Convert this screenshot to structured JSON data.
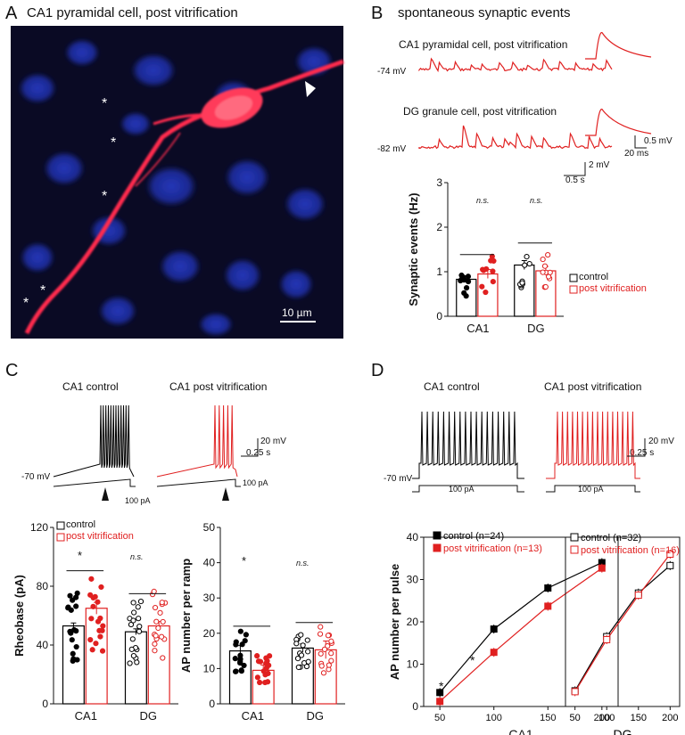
{
  "panelA": {
    "letter": "A",
    "title": "CA1 pyramidal cell, post vitrification",
    "scale_bar": "10 µm",
    "asterisk": "*",
    "colors": {
      "background": "#0a0a24",
      "nuclei": "#1e2e9a",
      "cell": "#ff2a4e"
    }
  },
  "panelB": {
    "letter": "B",
    "title": "spontaneous synaptic events",
    "trace1_title": "CA1 pyramidal cell, post vitrification",
    "trace1_vm": "-74 mV",
    "trace2_title": "DG granule cell, post vitrification",
    "trace2_vm": "-82 mV",
    "inset_scale_v": "0.5 mV",
    "inset_scale_t": "20 ms",
    "main_scale_v": "2 mV",
    "main_scale_t": "0.5 s",
    "legend_control": "control",
    "legend_post": "post vitrification",
    "sig1": "n.s.",
    "sig2": "n.s."
  },
  "panelC": {
    "letter": "C",
    "trace1_title": "CA1 control",
    "trace2_title": "CA1 post vitrification",
    "vm": "-70 mV",
    "scale_v": "20 mV",
    "scale_t": "0.25 s",
    "ramp1": "100 pA",
    "ramp2": "100 pA",
    "legend_control": "control",
    "legend_post": "post vitrification",
    "sig_ca1_1": "*",
    "sig_dg_1": "n.s.",
    "sig_ca1_2": "*",
    "sig_dg_2": "n.s."
  },
  "panelD": {
    "letter": "D",
    "trace1_title": "CA1 control",
    "trace2_title": "CA1 post vitrification",
    "vm": "-70 mV",
    "scale_v": "20 mV",
    "scale_t": "0.25 s",
    "step1": "100 pA",
    "step2": "100 pA",
    "sig1": "*",
    "sig2": "*"
  },
  "colors": {
    "control": "#000000",
    "post": "#e02020"
  },
  "chart_data": [
    {
      "id": "B",
      "type": "bar",
      "categories": [
        "CA1",
        "DG"
      ],
      "ylabel": "Synaptic events (Hz)",
      "ylim": [
        0,
        3
      ],
      "yticks": [
        "0",
        "1",
        "2",
        "3"
      ],
      "series": [
        {
          "name": "control",
          "values": [
            0.83,
            1.15
          ],
          "sem": [
            0.08,
            0.1
          ]
        },
        {
          "name": "post vitrification",
          "values": [
            0.95,
            1.02
          ],
          "sem": [
            0.1,
            0.1
          ]
        }
      ],
      "annotations": [
        "n.s.",
        "n.s."
      ]
    },
    {
      "id": "C-rheobase",
      "type": "bar",
      "categories": [
        "CA1",
        "DG"
      ],
      "ylabel": "Rheobase (pA)",
      "ylim": [
        0,
        120
      ],
      "yticks": [
        "0",
        "40",
        "80",
        "120"
      ],
      "series": [
        {
          "name": "control",
          "values": [
            53,
            49
          ],
          "sem": [
            2,
            2
          ]
        },
        {
          "name": "post vitrification",
          "values": [
            65,
            53
          ],
          "sem": [
            4,
            3
          ]
        }
      ],
      "annotations": [
        "*",
        "n.s."
      ]
    },
    {
      "id": "C-ap",
      "type": "bar",
      "categories": [
        "CA1",
        "DG"
      ],
      "ylabel": "AP number per ramp",
      "ylim": [
        0,
        50
      ],
      "yticks": [
        "0",
        "10",
        "20",
        "30",
        "40",
        "50"
      ],
      "series": [
        {
          "name": "control",
          "values": [
            15,
            15.8
          ],
          "sem": [
            1.5,
            1.2
          ]
        },
        {
          "name": "post vitrification",
          "values": [
            9.5,
            15.3
          ],
          "sem": [
            1.5,
            2.5
          ]
        }
      ],
      "annotations": [
        "*",
        "n.s."
      ]
    },
    {
      "id": "D-CA1",
      "type": "line",
      "xlabel": "CA1",
      "ylabel": "AP number per pulse",
      "x": [
        50,
        100,
        150,
        200
      ],
      "xticks": [
        "50",
        "100",
        "150",
        "200"
      ],
      "ylim": [
        0,
        40
      ],
      "yticks": [
        "0",
        "10",
        "20",
        "30",
        "40"
      ],
      "series": [
        {
          "name": "control (n=24)",
          "values": [
            3.3,
            18.3,
            28,
            34
          ],
          "marker": "filled-square"
        },
        {
          "name": "post vitrification (n=13)",
          "values": [
            1.2,
            12.8,
            23.7,
            32.7
          ],
          "marker": "filled-square"
        }
      ],
      "annotations": [
        "*",
        "*"
      ]
    },
    {
      "id": "D-DG",
      "type": "line",
      "xlabel": "DG",
      "x": [
        50,
        100,
        150,
        200
      ],
      "xticks": [
        "50",
        "100",
        "150",
        "200"
      ],
      "ylim": [
        0,
        40
      ],
      "series": [
        {
          "name": "control (n=32)",
          "values": [
            3.7,
            16.5,
            26.8,
            33.3
          ],
          "marker": "open-square"
        },
        {
          "name": "post vitrification (n=16)",
          "values": [
            3.5,
            15.8,
            26.3,
            36
          ],
          "marker": "open-square"
        }
      ]
    }
  ]
}
